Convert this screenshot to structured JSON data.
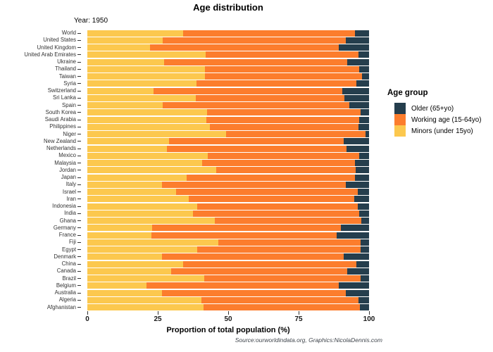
{
  "title": "Age distribution",
  "subtitle": "Year: 1950",
  "x_axis": {
    "label": "Proportion of total population (%)",
    "ticks": [
      0,
      25,
      50,
      75,
      100
    ],
    "range": [
      0,
      100
    ]
  },
  "caption": "Source:ourworldindata.org, Graphics:NicolaDennis.com",
  "colors": {
    "older": "#253E4D",
    "working": "#FC7D2D",
    "minors": "#FCC84E"
  },
  "legend": {
    "title": "Age group",
    "items": [
      {
        "label": "Older (65+yo)",
        "color": "#253E4D"
      },
      {
        "label": "Working age (15-64yo)",
        "color": "#FC7D2D"
      },
      {
        "label": "Minors (under 15yo)",
        "color": "#FCC84E"
      }
    ]
  },
  "chart_data": {
    "type": "bar",
    "orientation": "horizontal",
    "stacked": true,
    "title": "Age distribution",
    "subtitle": "Year: 1950",
    "xlabel": "Proportion of total population (%)",
    "ylabel": "",
    "xlim": [
      0,
      100
    ],
    "grid": false,
    "legend_position": "right",
    "categories": [
      "World",
      "United States",
      "United Kingdom",
      "United Arab Emirates",
      "Ukraine",
      "Thailand",
      "Taiwan",
      "Syria",
      "Switzerland",
      "Sri Lanka",
      "Spain",
      "South Korea",
      "Saudi Arabia",
      "Philippines",
      "Niger",
      "New Zealand",
      "Netherlands",
      "Mexico",
      "Malaysia",
      "Jordan",
      "Japan",
      "Italy",
      "Israel",
      "Iran",
      "Indonesia",
      "India",
      "Ghana",
      "Germany",
      "France",
      "Fiji",
      "Egypt",
      "Denmark",
      "China",
      "Canada",
      "Brazil",
      "Belgium",
      "Australia",
      "Algeria",
      "Afghanistan"
    ],
    "series": [
      {
        "name": "Minors (under 15yo)",
        "color": "#FCC84E",
        "values": [
          34.0,
          26.7,
          22.3,
          42.0,
          27.2,
          41.7,
          41.7,
          38.7,
          23.4,
          38.5,
          26.7,
          42.4,
          42.2,
          43.5,
          49.3,
          29.0,
          28.3,
          42.7,
          40.7,
          45.7,
          35.2,
          26.5,
          31.5,
          35.9,
          39.0,
          37.5,
          45.3,
          23.0,
          22.8,
          46.6,
          39.0,
          26.5,
          34.0,
          29.7,
          41.5,
          21.0,
          26.5,
          40.5,
          41.3
        ]
      },
      {
        "name": "Working age (15-64yo)",
        "color": "#FC7D2D",
        "values": [
          61.0,
          65.1,
          66.9,
          54.3,
          65.1,
          54.8,
          55.8,
          56.8,
          67.1,
          52.8,
          66.2,
          54.6,
          54.3,
          52.8,
          49.5,
          62.0,
          63.8,
          53.8,
          54.3,
          49.5,
          59.9,
          65.3,
          64.6,
          58.9,
          57.1,
          59.0,
          52.0,
          67.1,
          65.6,
          50.5,
          58.0,
          64.5,
          61.4,
          62.6,
          55.4,
          68.2,
          65.3,
          55.8,
          55.4
        ]
      },
      {
        "name": "Older (65+yo)",
        "color": "#253E4D",
        "values": [
          5.0,
          8.2,
          10.8,
          3.7,
          7.7,
          3.5,
          2.5,
          4.5,
          9.5,
          8.7,
          7.1,
          3.0,
          3.5,
          3.7,
          1.2,
          9.0,
          7.9,
          3.5,
          5.0,
          4.8,
          4.9,
          8.2,
          3.9,
          5.2,
          3.9,
          3.5,
          2.7,
          9.9,
          11.6,
          2.9,
          3.0,
          9.0,
          4.6,
          7.7,
          3.1,
          10.8,
          8.2,
          3.7,
          3.3
        ]
      }
    ]
  }
}
